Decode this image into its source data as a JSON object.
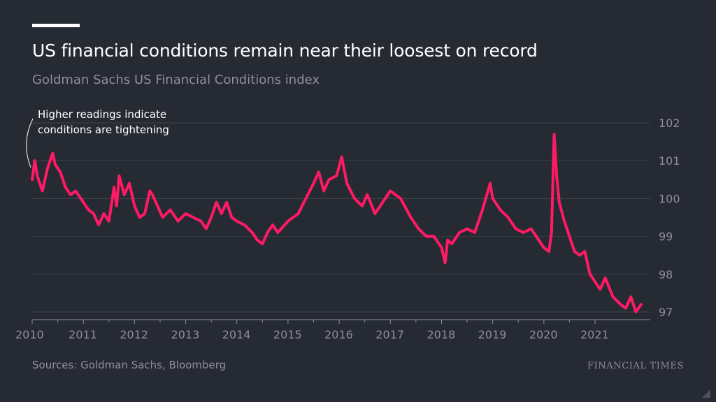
{
  "title": "US financial conditions remain near their loosest on record",
  "subtitle": "Goldman Sachs US Financial Conditions index",
  "annotation": {
    "line1": "Higher readings indicate",
    "line2": "conditions are tightening"
  },
  "source": "Sources: Goldman Sachs, Bloomberg",
  "brand": "FINANCIAL TIMES",
  "colors": {
    "background": "#262a33",
    "line": "#ff1a64",
    "grid": "#3d414a",
    "text": "#ffffff",
    "muted": "#8d9099"
  },
  "chart_data": {
    "type": "line",
    "xlabel": "",
    "ylabel": "",
    "x_ticks": [
      "2010",
      "2011",
      "2012",
      "2013",
      "2014",
      "2015",
      "2016",
      "2017",
      "2018",
      "2019",
      "2020",
      "2021"
    ],
    "y_ticks": [
      102,
      101,
      100,
      99,
      98,
      97
    ],
    "xlim": [
      2010.0,
      2021.95
    ],
    "ylim": [
      96.85,
      102.2
    ],
    "grid": true,
    "series": [
      {
        "x": [
          2010.0,
          2010.05,
          2010.1,
          2010.2,
          2010.3,
          2010.4,
          2010.45,
          2010.55,
          2010.65,
          2010.75,
          2010.85,
          2011.0,
          2011.1,
          2011.2,
          2011.3,
          2011.4,
          2011.5,
          2011.6,
          2011.65,
          2011.7,
          2011.8,
          2011.9,
          2012.0,
          2012.1,
          2012.2,
          2012.3,
          2012.35,
          2012.45,
          2012.55,
          2012.7,
          2012.85,
          2013.0,
          2013.15,
          2013.3,
          2013.4,
          2013.5,
          2013.6,
          2013.7,
          2013.8,
          2013.9,
          2014.0,
          2014.15,
          2014.3,
          2014.4,
          2014.5,
          2014.6,
          2014.7,
          2014.8,
          2015.0,
          2015.2,
          2015.35,
          2015.5,
          2015.6,
          2015.7,
          2015.8,
          2015.95,
          2016.05,
          2016.15,
          2016.3,
          2016.45,
          2016.55,
          2016.7,
          2016.85,
          2017.0,
          2017.2,
          2017.4,
          2017.55,
          2017.7,
          2017.85,
          2018.0,
          2018.07,
          2018.12,
          2018.2,
          2018.35,
          2018.5,
          2018.65,
          2018.8,
          2018.95,
          2019.0,
          2019.15,
          2019.3,
          2019.45,
          2019.6,
          2019.75,
          2019.9,
          2020.0,
          2020.1,
          2020.15,
          2020.2,
          2020.25,
          2020.3,
          2020.4,
          2020.5,
          2020.6,
          2020.7,
          2020.8,
          2020.9,
          2021.0,
          2021.1,
          2021.2,
          2021.35,
          2021.5,
          2021.6,
          2021.7,
          2021.8,
          2021.9
        ],
        "y": [
          100.5,
          101.0,
          100.6,
          100.2,
          100.8,
          101.2,
          100.9,
          100.7,
          100.3,
          100.1,
          100.2,
          99.9,
          99.7,
          99.6,
          99.3,
          99.6,
          99.4,
          100.3,
          99.8,
          100.6,
          100.1,
          100.4,
          99.8,
          99.5,
          99.6,
          100.2,
          100.1,
          99.8,
          99.5,
          99.7,
          99.4,
          99.6,
          99.5,
          99.4,
          99.2,
          99.5,
          99.9,
          99.6,
          99.9,
          99.5,
          99.4,
          99.3,
          99.1,
          98.9,
          98.8,
          99.1,
          99.3,
          99.1,
          99.4,
          99.6,
          100.0,
          100.4,
          100.7,
          100.2,
          100.5,
          100.6,
          101.1,
          100.4,
          100.0,
          99.8,
          100.1,
          99.6,
          99.9,
          100.2,
          100.0,
          99.5,
          99.2,
          99.0,
          99.0,
          98.7,
          98.3,
          98.9,
          98.8,
          99.1,
          99.2,
          99.1,
          99.7,
          100.4,
          100.0,
          99.7,
          99.5,
          99.2,
          99.1,
          99.2,
          98.9,
          98.7,
          98.6,
          99.1,
          101.7,
          100.6,
          99.9,
          99.4,
          99.0,
          98.6,
          98.5,
          98.6,
          98.0,
          97.8,
          97.6,
          97.9,
          97.4,
          97.2,
          97.1,
          97.4,
          97.0,
          97.2
        ]
      }
    ]
  }
}
